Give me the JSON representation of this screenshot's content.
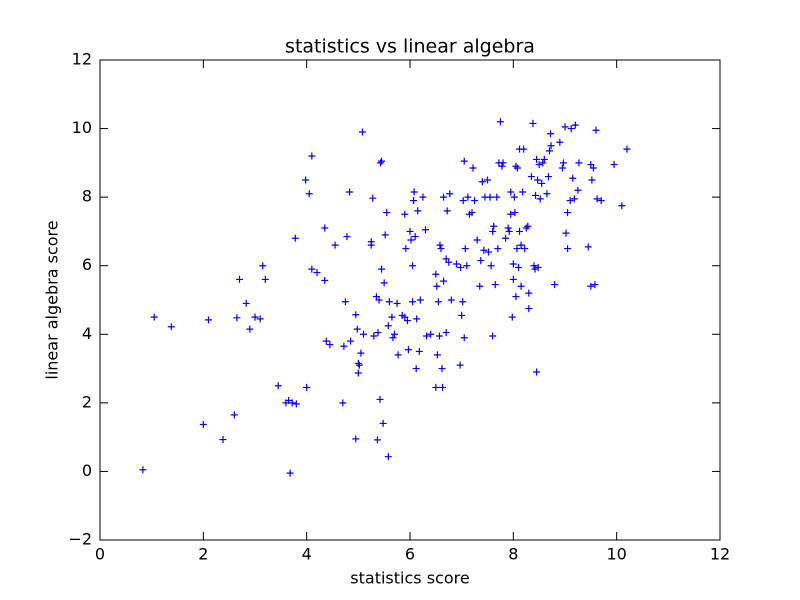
{
  "chart_data": {
    "type": "scatter",
    "title": "statistics vs linear algebra",
    "x_label": "statistics score",
    "y_label": "linear algebra score",
    "color": "#0000ff",
    "marker": "+",
    "xlim": [
      0,
      12
    ],
    "xticks": [
      0,
      2,
      4,
      6,
      8,
      10,
      12
    ],
    "ylim": [
      -2,
      12
    ],
    "yticks": [
      {
        "value": -2,
        "label": "−2"
      },
      0,
      2,
      4,
      6,
      8,
      10,
      12
    ],
    "grid": false,
    "x": [
      0.83,
      1.05,
      1.38,
      2.0,
      2.1,
      2.38,
      2.6,
      2.65,
      2.7,
      2.83,
      2.9,
      3.0,
      3.1,
      3.15,
      3.2,
      3.45,
      3.6,
      3.65,
      3.68,
      3.72,
      3.78,
      3.8,
      3.98,
      4.0,
      4.05,
      4.1,
      4.1,
      4.2,
      4.35,
      4.35,
      4.38,
      4.45,
      4.55,
      4.7,
      4.72,
      4.75,
      4.78,
      4.83,
      4.85,
      4.95,
      4.95,
      4.98,
      5.0,
      5.0,
      5.02,
      5.05,
      5.08,
      5.1,
      5.25,
      5.25,
      5.28,
      5.3,
      5.35,
      5.37,
      5.38,
      5.4,
      5.42,
      5.43,
      5.45,
      5.45,
      5.48,
      5.5,
      5.52,
      5.55,
      5.58,
      5.58,
      5.6,
      5.65,
      5.67,
      5.7,
      5.75,
      5.77,
      5.85,
      5.9,
      5.9,
      5.92,
      5.95,
      5.97,
      6.0,
      6.02,
      6.05,
      6.05,
      6.07,
      6.08,
      6.1,
      6.12,
      6.13,
      6.15,
      6.18,
      6.2,
      6.25,
      6.3,
      6.32,
      6.4,
      6.5,
      6.5,
      6.52,
      6.53,
      6.55,
      6.57,
      6.58,
      6.6,
      6.62,
      6.63,
      6.65,
      6.65,
      6.7,
      6.7,
      6.72,
      6.75,
      6.77,
      6.8,
      6.9,
      6.97,
      6.98,
      7.0,
      7.02,
      7.03,
      7.05,
      7.05,
      7.07,
      7.1,
      7.12,
      7.15,
      7.2,
      7.22,
      7.25,
      7.3,
      7.35,
      7.37,
      7.4,
      7.43,
      7.45,
      7.5,
      7.52,
      7.55,
      7.57,
      7.6,
      7.6,
      7.62,
      7.65,
      7.68,
      7.7,
      7.72,
      7.75,
      7.78,
      7.8,
      7.85,
      7.9,
      7.92,
      7.95,
      7.95,
      7.98,
      8.0,
      8.0,
      8.02,
      8.03,
      8.05,
      8.05,
      8.07,
      8.08,
      8.1,
      8.12,
      8.12,
      8.15,
      8.15,
      8.18,
      8.2,
      8.22,
      8.25,
      8.28,
      8.3,
      8.3,
      8.35,
      8.38,
      8.4,
      8.42,
      8.43,
      8.45,
      8.45,
      8.47,
      8.48,
      8.5,
      8.52,
      8.55,
      8.57,
      8.6,
      8.65,
      8.68,
      8.7,
      8.72,
      8.73,
      8.8,
      8.9,
      8.95,
      8.97,
      9.0,
      9.02,
      9.05,
      9.05,
      9.1,
      9.12,
      9.15,
      9.18,
      9.2,
      9.25,
      9.27,
      9.45,
      9.5,
      9.5,
      9.52,
      9.55,
      9.58,
      9.6,
      9.62,
      9.7,
      9.95,
      10.1,
      10.2
    ],
    "values": [
      0.05,
      4.5,
      4.22,
      1.37,
      4.42,
      0.93,
      1.65,
      4.48,
      5.6,
      4.9,
      4.15,
      4.5,
      4.45,
      6.0,
      5.6,
      2.5,
      2.0,
      2.07,
      -0.05,
      2.0,
      6.8,
      1.97,
      8.5,
      2.45,
      8.1,
      9.2,
      5.9,
      5.8,
      7.1,
      5.57,
      3.8,
      3.7,
      6.6,
      2.0,
      3.65,
      4.95,
      6.85,
      8.15,
      3.8,
      4.57,
      0.95,
      4.15,
      3.15,
      2.87,
      3.1,
      3.45,
      9.9,
      4.0,
      6.6,
      6.7,
      7.97,
      3.95,
      5.1,
      0.92,
      4.05,
      5.0,
      2.1,
      9.0,
      9.05,
      5.9,
      1.4,
      5.5,
      6.9,
      7.55,
      4.25,
      0.43,
      4.95,
      4.5,
      3.9,
      4.0,
      4.9,
      3.4,
      4.55,
      4.5,
      7.5,
      6.5,
      4.4,
      3.55,
      7.0,
      6.75,
      4.95,
      6.0,
      7.9,
      8.15,
      6.85,
      3.0,
      4.45,
      7.6,
      3.5,
      5.0,
      8.0,
      7.05,
      3.95,
      4.0,
      5.75,
      2.45,
      5.4,
      3.4,
      4.95,
      3.95,
      6.6,
      6.5,
      3.0,
      2.45,
      5.55,
      8.0,
      6.2,
      4.05,
      7.6,
      6.1,
      8.1,
      5.0,
      6.05,
      3.1,
      5.95,
      4.55,
      4.95,
      7.9,
      9.05,
      3.9,
      6.5,
      6.0,
      8.0,
      7.5,
      7.55,
      8.85,
      7.9,
      6.75,
      5.4,
      6.15,
      8.45,
      6.45,
      8.0,
      8.5,
      6.4,
      8.0,
      6.0,
      7.0,
      3.95,
      7.15,
      5.45,
      8.0,
      6.5,
      9.0,
      10.2,
      8.9,
      9.0,
      6.8,
      7.1,
      7.0,
      7.5,
      8.15,
      4.5,
      5.6,
      6.05,
      8.0,
      7.55,
      5.1,
      8.9,
      6.5,
      8.85,
      5.95,
      7.0,
      9.4,
      6.6,
      5.4,
      8.15,
      9.4,
      6.5,
      7.1,
      7.15,
      5.2,
      4.75,
      8.6,
      10.15,
      6.0,
      5.9,
      8.05,
      2.9,
      9.1,
      8.5,
      5.95,
      8.95,
      7.95,
      8.4,
      9.0,
      9.1,
      8.1,
      8.6,
      9.35,
      9.85,
      9.5,
      5.45,
      9.6,
      8.85,
      9.0,
      10.05,
      6.95,
      7.55,
      6.5,
      7.9,
      10.0,
      8.55,
      7.95,
      10.1,
      8.2,
      9.0,
      6.55,
      8.95,
      5.4,
      8.5,
      8.85,
      5.45,
      9.95,
      7.95,
      7.9,
      8.95,
      7.75,
      9.4
    ]
  }
}
